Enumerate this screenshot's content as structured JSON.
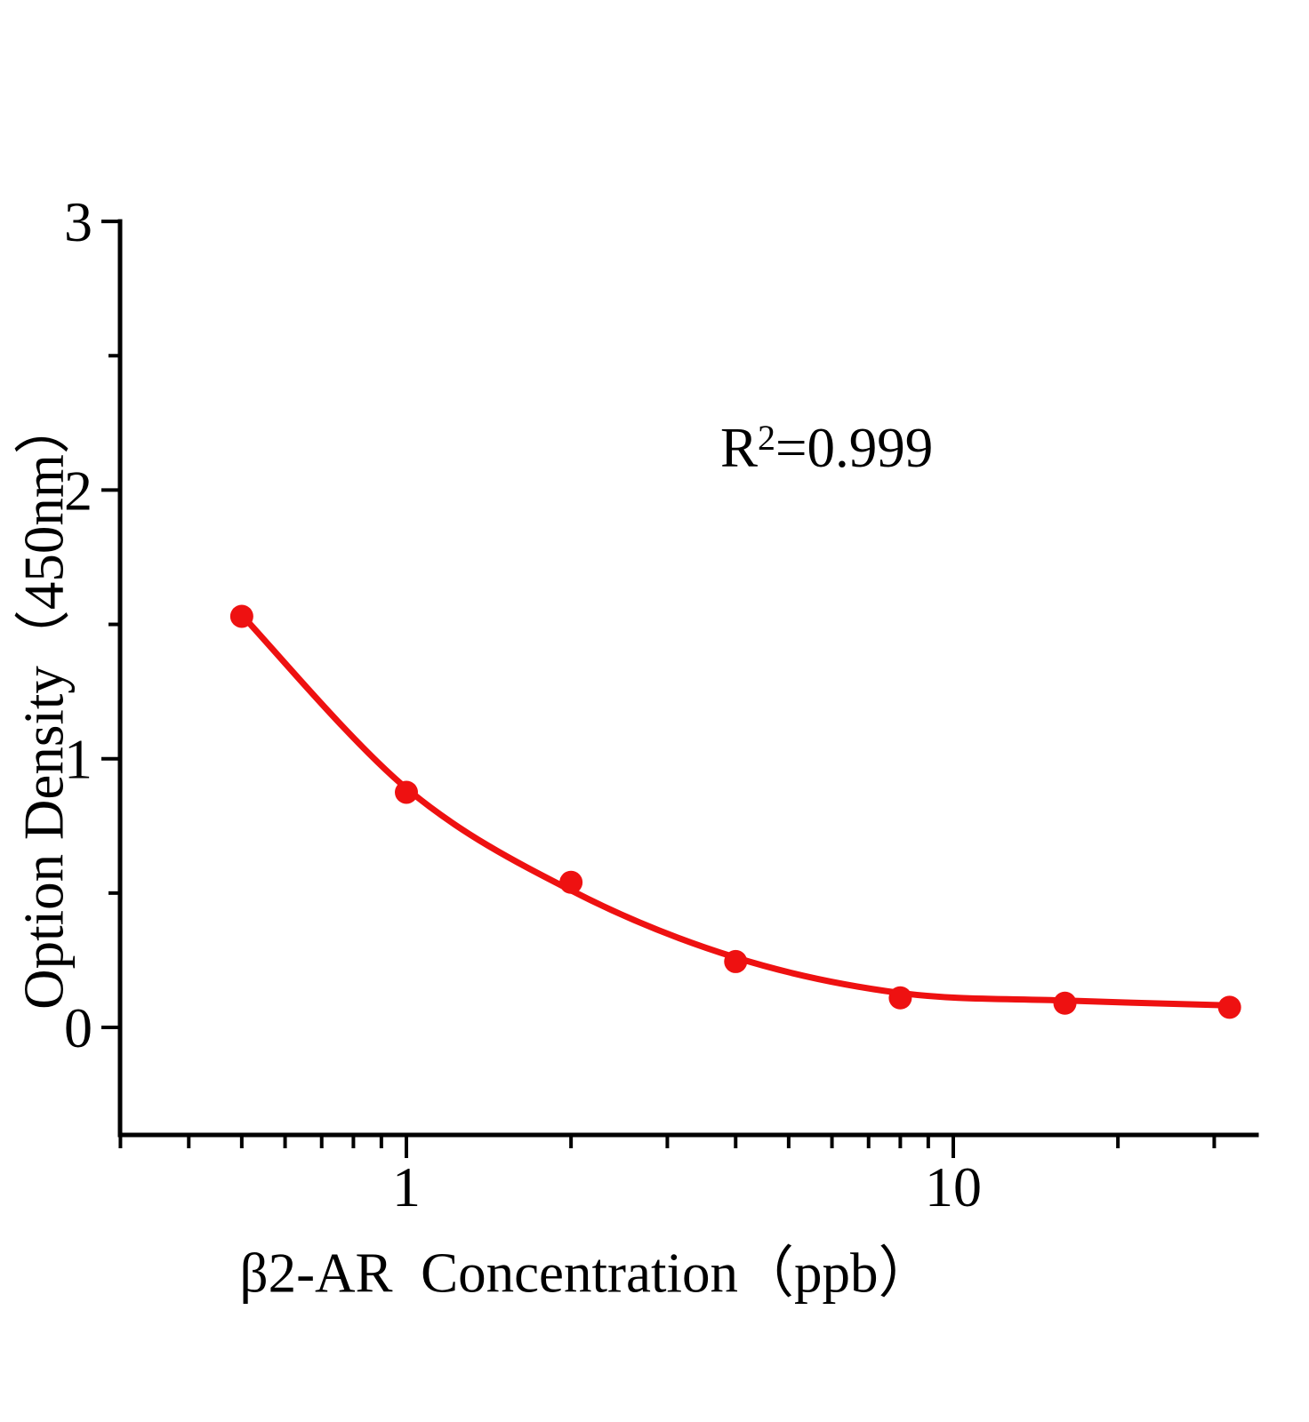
{
  "figure": {
    "background": "#ffffff",
    "axis_color": "#000000",
    "accent_color": "#ee1111"
  },
  "annotation": {
    "base": "R",
    "exponent": "2",
    "rest": "=0.999"
  },
  "chart_data": {
    "type": "scatter",
    "title": "",
    "xlabel": "β2-AR  Concentration（ppb）",
    "ylabel": "Option Density（450nm）",
    "annotation_text": "R²=0.999",
    "r_squared": 0.999,
    "x_scale": "log10",
    "x_range": [
      0.3,
      35.9
    ],
    "y_range": [
      -0.4,
      3.0
    ],
    "grid": false,
    "legend": false,
    "x_major_ticks": [
      {
        "value": 1,
        "label": "1"
      },
      {
        "value": 10,
        "label": "10"
      }
    ],
    "x_minor_ticks": [
      0.3,
      0.4,
      0.5,
      0.6,
      0.7,
      0.8,
      0.9,
      2,
      3,
      4,
      5,
      6,
      7,
      8,
      9,
      20,
      30
    ],
    "y_major_ticks": [
      {
        "value": 0,
        "label": "0"
      },
      {
        "value": 1,
        "label": "1"
      },
      {
        "value": 2,
        "label": "2"
      },
      {
        "value": 3,
        "label": "3"
      }
    ],
    "y_minor_ticks": [
      0.5,
      1.5,
      2.5
    ],
    "series": [
      {
        "name": "standard-points",
        "kind": "points",
        "marker": "circle",
        "color": "#ee1111",
        "x": [
          0.5,
          1,
          2,
          4,
          8,
          16,
          32
        ],
        "y": [
          1.53,
          0.875,
          0.54,
          0.245,
          0.11,
          0.09,
          0.075
        ]
      },
      {
        "name": "fitted-curve",
        "kind": "curve",
        "color": "#ee1111",
        "x": [
          0.5,
          1,
          2,
          4,
          8,
          16,
          32
        ],
        "y": [
          1.535,
          0.89,
          0.51,
          0.26,
          0.128,
          0.1,
          0.082
        ]
      }
    ]
  }
}
